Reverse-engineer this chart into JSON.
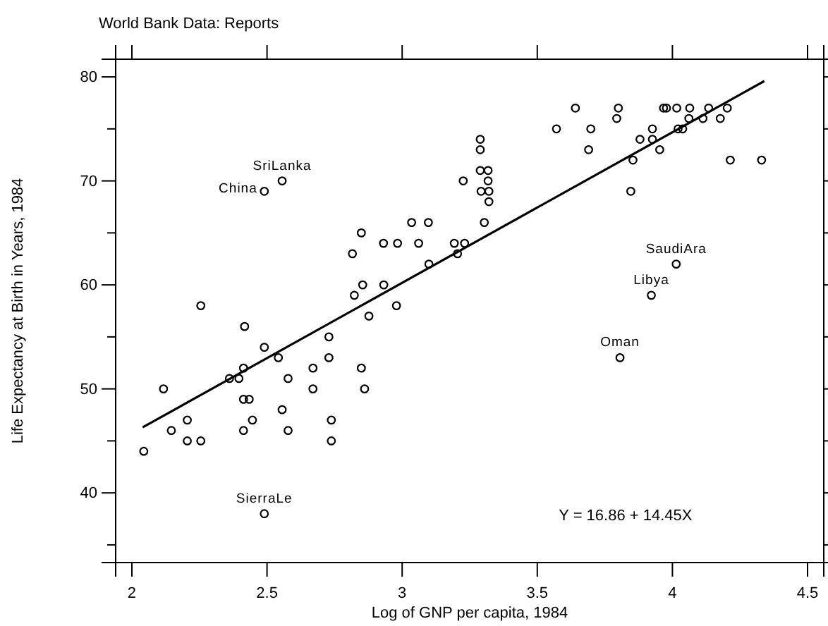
{
  "chart_data": {
    "type": "scatter",
    "title": "World Bank Data: Reports",
    "xlabel": "Log of GNP per capita, 1984",
    "ylabel": "Life Expectancy at Birth in Years, 1984",
    "xlim": [
      1.94,
      4.56
    ],
    "ylim": [
      33.3,
      81.7
    ],
    "xticks": [
      2,
      2.5,
      3,
      3.5,
      4,
      4.5
    ],
    "yticks": [
      {
        "value": 35,
        "label": null
      },
      40,
      {
        "value": 45,
        "label": null
      },
      50,
      {
        "value": 55,
        "label": null
      },
      60,
      {
        "value": 65,
        "label": null
      },
      70,
      {
        "value": 75,
        "label": null
      },
      80
    ],
    "grid": false,
    "marker": "circle",
    "series": [
      {
        "color": "#000000",
        "x": [
          2.044,
          2.117,
          2.146,
          2.205,
          2.205,
          2.255,
          2.255,
          2.361,
          2.396,
          2.413,
          2.417,
          2.413,
          2.434,
          2.413,
          2.446,
          2.49,
          2.49,
          2.542,
          2.556,
          2.578,
          2.578,
          2.67,
          2.67,
          2.729,
          2.729,
          2.738,
          2.738,
          2.823,
          2.854,
          2.877,
          2.849,
          2.861,
          2.932,
          2.979,
          2.49,
          2.556,
          2.849,
          2.816,
          2.931,
          2.983,
          3.035,
          3.097,
          3.061,
          3.099,
          3.193,
          3.231,
          3.205,
          3.226,
          3.289,
          3.289,
          3.289,
          3.318,
          3.318,
          3.292,
          3.321,
          3.321,
          3.304,
          3.571,
          3.641,
          3.698,
          3.69,
          3.794,
          3.8,
          3.846,
          3.854,
          3.88,
          3.926,
          3.926,
          3.953,
          3.967,
          3.978,
          4.016,
          4.064,
          4.134,
          4.203,
          4.021,
          4.038,
          4.061,
          4.113,
          4.177,
          4.214,
          4.33,
          4.014,
          3.922,
          3.806
        ],
        "values": [
          44,
          50,
          46,
          47,
          45,
          45,
          58,
          51,
          51,
          52,
          56,
          49,
          49,
          46,
          47,
          54,
          38,
          53,
          48,
          51,
          46,
          52,
          50,
          55,
          53,
          47,
          45,
          59,
          60,
          57,
          52,
          50,
          60,
          58,
          69,
          70,
          65,
          63,
          64,
          64,
          66,
          66,
          64,
          62,
          64,
          64,
          63,
          70,
          74,
          73,
          71,
          71,
          70,
          69,
          69,
          68,
          66,
          75,
          77,
          75,
          73,
          76,
          77,
          69,
          72,
          74,
          75,
          74,
          73,
          77,
          77,
          77,
          77,
          77,
          77,
          75,
          75,
          76,
          76,
          76,
          72,
          72,
          62,
          59,
          53
        ]
      },
      {
        "type": "line",
        "color": "#000000",
        "marker": "none",
        "line_style": "solid",
        "x": [
          2.04,
          4.34
        ],
        "values": [
          46.3,
          79.6
        ]
      }
    ],
    "annotations": [
      {
        "text": "China",
        "x": 2.49,
        "y": 69
      },
      {
        "text": "SriLanka",
        "x": 2.556,
        "y": 70
      },
      {
        "text": "SierraLe",
        "x": 2.49,
        "y": 38
      },
      {
        "text": "SaudiAra",
        "x": 4.014,
        "y": 62
      },
      {
        "text": "Libya",
        "x": 3.922,
        "y": 59
      },
      {
        "text": "Oman",
        "x": 3.806,
        "y": 53
      },
      "Y = 16.86 + 14.45X"
    ]
  }
}
